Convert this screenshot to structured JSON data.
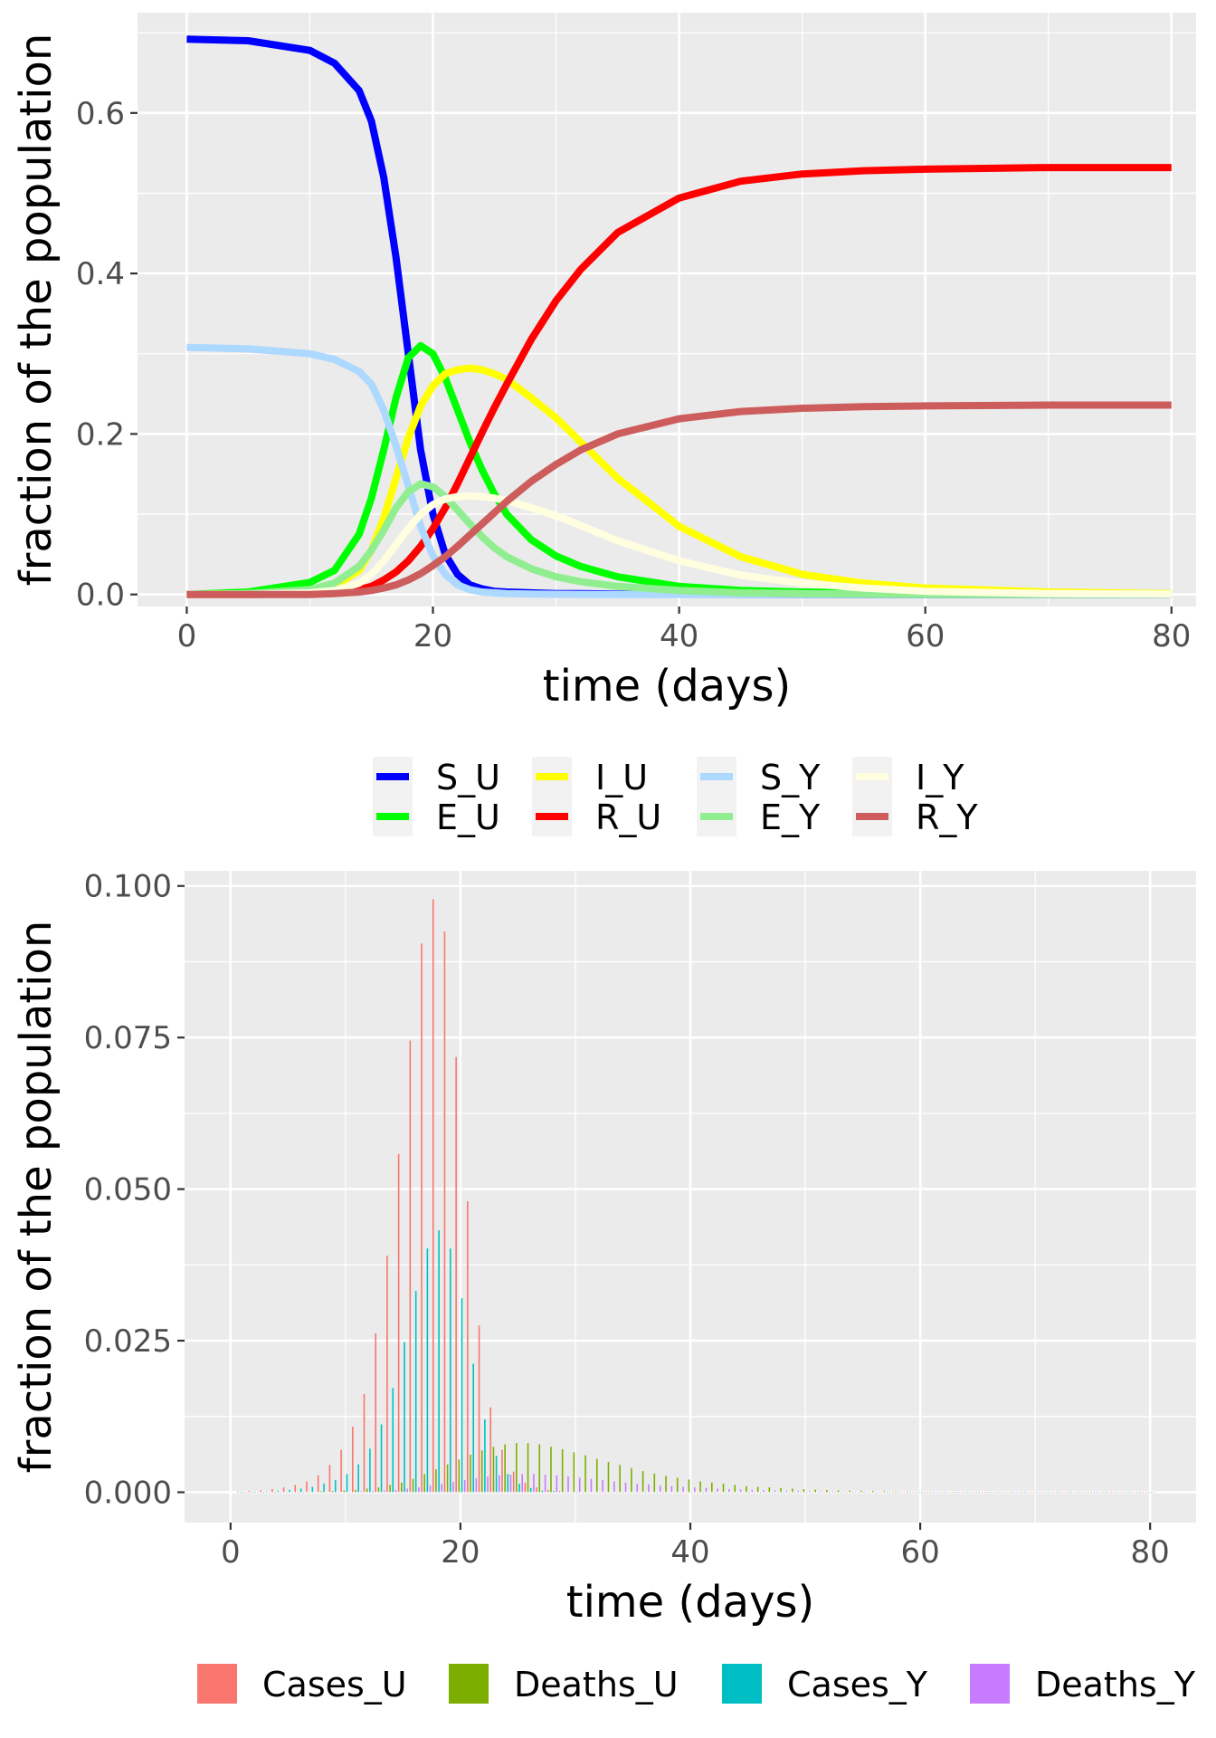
{
  "chart_data": [
    {
      "type": "line",
      "xlabel": "time (days)",
      "ylabel": "fraction of the population",
      "xlim": [
        -4,
        82
      ],
      "ylim": [
        -0.015,
        0.725
      ],
      "x_ticks": [
        0,
        20,
        40,
        60,
        80
      ],
      "y_ticks": [
        0.0,
        0.2,
        0.4,
        0.6
      ],
      "x_tick_labels": [
        "0",
        "20",
        "40",
        "60",
        "80"
      ],
      "y_tick_labels": [
        "0.0",
        "0.2",
        "0.4",
        "0.6"
      ],
      "grid": true,
      "legend_position": "bottom",
      "x": [
        0,
        5,
        10,
        12,
        14,
        15,
        16,
        17,
        18,
        19,
        20,
        21,
        22,
        23,
        24,
        25,
        26,
        28,
        30,
        32,
        35,
        40,
        45,
        50,
        55,
        60,
        70,
        80
      ],
      "series": [
        {
          "name": "S_U",
          "color": "#0000ff",
          "values": [
            0.692,
            0.69,
            0.678,
            0.662,
            0.628,
            0.59,
            0.52,
            0.42,
            0.3,
            0.18,
            0.1,
            0.05,
            0.025,
            0.012,
            0.007,
            0.004,
            0.003,
            0.002,
            0.001,
            0.001,
            0.0005,
            0.0002,
            0.0001,
            0,
            0,
            0,
            0,
            0
          ]
        },
        {
          "name": "E_U",
          "color": "#00ff00",
          "values": [
            0.0,
            0.003,
            0.015,
            0.03,
            0.075,
            0.12,
            0.18,
            0.245,
            0.295,
            0.31,
            0.3,
            0.27,
            0.23,
            0.19,
            0.155,
            0.125,
            0.1,
            0.068,
            0.048,
            0.035,
            0.022,
            0.01,
            0.005,
            0.003,
            0.002,
            0.001,
            0.0005,
            0.0002
          ]
        },
        {
          "name": "I_U",
          "color": "#ffff00",
          "values": [
            0.0,
            0.001,
            0.004,
            0.01,
            0.03,
            0.055,
            0.095,
            0.145,
            0.195,
            0.235,
            0.26,
            0.275,
            0.28,
            0.282,
            0.28,
            0.275,
            0.268,
            0.245,
            0.22,
            0.19,
            0.145,
            0.085,
            0.047,
            0.025,
            0.014,
            0.008,
            0.003,
            0.001
          ]
        },
        {
          "name": "R_U",
          "color": "#ff0000",
          "values": [
            0.0,
            0.0,
            0.001,
            0.002,
            0.006,
            0.01,
            0.018,
            0.028,
            0.042,
            0.06,
            0.082,
            0.108,
            0.138,
            0.17,
            0.202,
            0.233,
            0.262,
            0.318,
            0.366,
            0.405,
            0.451,
            0.494,
            0.515,
            0.524,
            0.528,
            0.53,
            0.532,
            0.532
          ]
        },
        {
          "name": "S_Y",
          "color": "#add8ff",
          "values": [
            0.308,
            0.306,
            0.3,
            0.293,
            0.278,
            0.262,
            0.23,
            0.185,
            0.135,
            0.085,
            0.048,
            0.025,
            0.012,
            0.006,
            0.003,
            0.002,
            0.001,
            0.0005,
            0.0002,
            0.0001,
            0,
            0,
            0,
            0,
            0,
            0,
            0,
            0
          ]
        },
        {
          "name": "E_Y",
          "color": "#90ee90",
          "values": [
            0.0,
            0.001,
            0.006,
            0.014,
            0.035,
            0.055,
            0.08,
            0.108,
            0.128,
            0.138,
            0.134,
            0.122,
            0.105,
            0.088,
            0.072,
            0.058,
            0.047,
            0.032,
            0.022,
            0.016,
            0.01,
            0.005,
            0.002,
            0.001,
            0.0005,
            0.0002,
            0.0001,
            0
          ]
        },
        {
          "name": "I_Y",
          "color": "#ffffe0",
          "values": [
            0.0,
            0.0,
            0.002,
            0.005,
            0.014,
            0.025,
            0.042,
            0.062,
            0.082,
            0.1,
            0.112,
            0.119,
            0.122,
            0.123,
            0.122,
            0.12,
            0.117,
            0.108,
            0.098,
            0.086,
            0.067,
            0.042,
            0.024,
            0.014,
            0.008,
            0.004,
            0.001,
            0.0003
          ]
        },
        {
          "name": "R_Y",
          "color": "#cd5c5c",
          "values": [
            0.0,
            0.0,
            0.0,
            0.001,
            0.003,
            0.005,
            0.008,
            0.012,
            0.018,
            0.026,
            0.036,
            0.047,
            0.06,
            0.074,
            0.088,
            0.102,
            0.116,
            0.141,
            0.162,
            0.18,
            0.2,
            0.219,
            0.228,
            0.232,
            0.234,
            0.235,
            0.236,
            0.236
          ]
        }
      ]
    },
    {
      "type": "bar",
      "xlabel": "time (days)",
      "ylabel": "fraction of the population",
      "xlim": [
        -4,
        84
      ],
      "ylim": [
        -0.005,
        0.1025
      ],
      "x_ticks": [
        0,
        20,
        40,
        60,
        80
      ],
      "y_ticks": [
        0.0,
        0.025,
        0.05,
        0.075,
        0.1
      ],
      "x_tick_labels": [
        "0",
        "20",
        "40",
        "60",
        "80"
      ],
      "y_tick_labels": [
        "0.000",
        "0.025",
        "0.050",
        "0.075",
        "0.100"
      ],
      "grid": true,
      "legend_position": "bottom",
      "bar_groups_per_day": 4,
      "days": [
        1,
        2,
        3,
        4,
        5,
        6,
        7,
        8,
        9,
        10,
        11,
        12,
        13,
        14,
        15,
        16,
        17,
        18,
        19,
        20,
        21,
        22,
        23,
        24,
        25,
        26,
        27,
        28,
        29,
        30,
        31,
        32,
        33,
        34,
        35,
        36,
        37,
        38,
        39,
        40,
        41,
        42,
        43,
        44,
        45,
        46,
        47,
        48,
        49,
        50,
        51,
        52,
        53,
        54,
        55,
        56,
        57,
        58,
        59,
        60,
        61,
        62,
        63,
        64,
        65,
        66,
        67,
        68,
        69,
        70,
        71,
        72,
        73,
        74,
        75,
        76,
        77,
        78,
        79,
        80
      ],
      "series": [
        {
          "name": "Cases_U",
          "color": "#f8766d",
          "values": [
            0.0001,
            0.0002,
            0.0003,
            0.0005,
            0.0008,
            0.0012,
            0.0018,
            0.0028,
            0.0045,
            0.007,
            0.0108,
            0.0162,
            0.0262,
            0.039,
            0.0558,
            0.0745,
            0.0905,
            0.0978,
            0.0925,
            0.0718,
            0.048,
            0.0275,
            0.014,
            0.007,
            0.0034,
            0.0016,
            0.0008,
            0.0004,
            0.0002,
            0.0001,
            5e-05,
            2e-05,
            1e-05,
            0,
            0,
            0,
            0,
            0,
            0,
            0,
            0,
            0,
            0,
            0,
            0,
            0,
            0,
            0,
            0,
            0,
            0,
            0,
            0,
            0,
            0,
            0,
            0,
            0,
            0,
            0,
            0,
            0,
            0,
            0,
            0,
            0,
            0,
            0,
            0,
            0,
            0,
            0,
            0,
            0,
            0,
            0,
            0,
            0,
            0,
            0
          ]
        },
        {
          "name": "Deaths_U",
          "color": "#7cae00",
          "values": [
            0,
            0,
            0,
            0,
            0,
            5e-05,
            0.0001,
            0.00015,
            0.0002,
            0.0003,
            0.0004,
            0.0006,
            0.0008,
            0.0012,
            0.0016,
            0.0022,
            0.003,
            0.0038,
            0.0046,
            0.0054,
            0.0062,
            0.0069,
            0.0075,
            0.0079,
            0.0081,
            0.0081,
            0.0079,
            0.0075,
            0.0071,
            0.0066,
            0.0061,
            0.0055,
            0.005,
            0.0045,
            0.004,
            0.0035,
            0.0031,
            0.0027,
            0.0024,
            0.0021,
            0.0018,
            0.0016,
            0.0014,
            0.0012,
            0.001,
            0.0009,
            0.0008,
            0.0007,
            0.0006,
            0.0005,
            0.00043,
            0.00037,
            0.00032,
            0.00027,
            0.00023,
            0.0002,
            0.00017,
            0.00014,
            0.00012,
            0.0001,
            9e-05,
            7e-05,
            6e-05,
            5e-05,
            4e-05,
            4e-05,
            3e-05,
            3e-05,
            2e-05,
            2e-05,
            2e-05,
            1e-05,
            1e-05,
            1e-05,
            1e-05,
            1e-05,
            1e-05,
            0,
            0,
            0
          ]
        },
        {
          "name": "Cases_Y",
          "color": "#00bfc4",
          "values": [
            0,
            0.0001,
            0.0001,
            0.0002,
            0.0004,
            0.0006,
            0.0009,
            0.0014,
            0.002,
            0.003,
            0.0046,
            0.0072,
            0.0112,
            0.0172,
            0.0248,
            0.0332,
            0.0402,
            0.0432,
            0.0402,
            0.032,
            0.0212,
            0.012,
            0.006,
            0.003,
            0.0014,
            0.0007,
            0.0003,
            0.0002,
            0.0001,
            5e-05,
            2e-05,
            1e-05,
            0,
            0,
            0,
            0,
            0,
            0,
            0,
            0,
            0,
            0,
            0,
            0,
            0,
            0,
            0,
            0,
            0,
            0,
            0,
            0,
            0,
            0,
            0,
            0,
            0,
            0,
            0,
            0,
            0,
            0,
            0,
            0,
            0,
            0,
            0,
            0,
            0,
            0,
            0,
            0,
            0,
            0,
            0,
            0,
            0,
            0,
            0,
            0
          ]
        },
        {
          "name": "Deaths_Y",
          "color": "#c77cff",
          "values": [
            0,
            0,
            0,
            0,
            0,
            0,
            2e-05,
            4e-05,
            6e-05,
            0.0001,
            0.00015,
            0.0002,
            0.0003,
            0.0004,
            0.0006,
            0.0008,
            0.0011,
            0.0014,
            0.0017,
            0.002,
            0.0023,
            0.0026,
            0.0028,
            0.0029,
            0.003,
            0.003,
            0.0029,
            0.0028,
            0.0026,
            0.0024,
            0.0022,
            0.002,
            0.0018,
            0.0016,
            0.0014,
            0.0013,
            0.0011,
            0.001,
            0.0009,
            0.0008,
            0.0007,
            0.0006,
            0.0005,
            0.00045,
            0.0004,
            0.00035,
            0.0003,
            0.00025,
            0.00022,
            0.00019,
            0.00016,
            0.00014,
            0.00012,
            0.0001,
            9e-05,
            8e-05,
            7e-05,
            6e-05,
            5e-05,
            4e-05,
            3e-05,
            3e-05,
            2e-05,
            2e-05,
            2e-05,
            1e-05,
            1e-05,
            1e-05,
            1e-05,
            1e-05,
            0,
            0,
            0,
            0,
            0,
            0,
            0,
            0,
            0,
            0
          ]
        }
      ]
    }
  ]
}
